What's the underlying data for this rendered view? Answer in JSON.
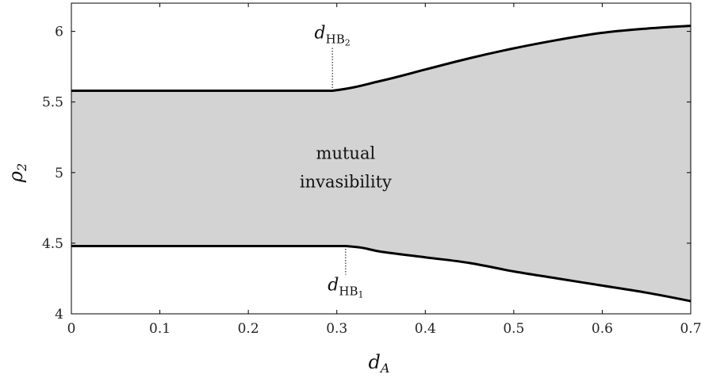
{
  "chart_data": {
    "type": "area",
    "title": "",
    "xlabel": {
      "main": "d",
      "sub": "A"
    },
    "ylabel": {
      "main": "ρ",
      "sub": "2"
    },
    "xlim": [
      0,
      0.7
    ],
    "ylim": [
      4,
      6.2
    ],
    "xticks": [
      0,
      0.1,
      0.2,
      0.3,
      0.4,
      0.5,
      0.6,
      0.7
    ],
    "xtick_labels": [
      "0",
      "0.1",
      "0.2",
      "0.3",
      "0.4",
      "0.5",
      "0.6",
      "0.7"
    ],
    "yticks": [
      4,
      4.5,
      5,
      5.5,
      6
    ],
    "ytick_labels": [
      "4",
      "4.5",
      "5",
      "5.5",
      "6"
    ],
    "grid": false,
    "fill_color": "#d3d3d3",
    "line_color": "#000000",
    "series": [
      {
        "name": "",
        "role": "upper-boundary",
        "x": [
          0,
          0.1,
          0.2,
          0.295,
          0.35,
          0.4,
          0.45,
          0.5,
          0.55,
          0.6,
          0.65,
          0.7
        ],
        "y": [
          5.58,
          5.58,
          5.58,
          5.58,
          5.65,
          5.73,
          5.81,
          5.88,
          5.94,
          5.99,
          6.02,
          6.04
        ]
      },
      {
        "name": "",
        "role": "lower-boundary",
        "x": [
          0,
          0.1,
          0.2,
          0.31,
          0.35,
          0.4,
          0.45,
          0.5,
          0.55,
          0.6,
          0.65,
          0.7
        ],
        "y": [
          4.48,
          4.48,
          4.48,
          4.48,
          4.44,
          4.4,
          4.36,
          4.3,
          4.25,
          4.2,
          4.15,
          4.09
        ]
      }
    ],
    "region_label": [
      "mutual",
      "invasibility"
    ],
    "annotations": [
      {
        "id": "hb2",
        "x": 0.295,
        "main": "d",
        "sub": "HB",
        "subsub": "2",
        "at": "upper"
      },
      {
        "id": "hb1",
        "x": 0.31,
        "main": "d",
        "sub": "HB",
        "subsub": "1",
        "at": "lower"
      }
    ]
  }
}
